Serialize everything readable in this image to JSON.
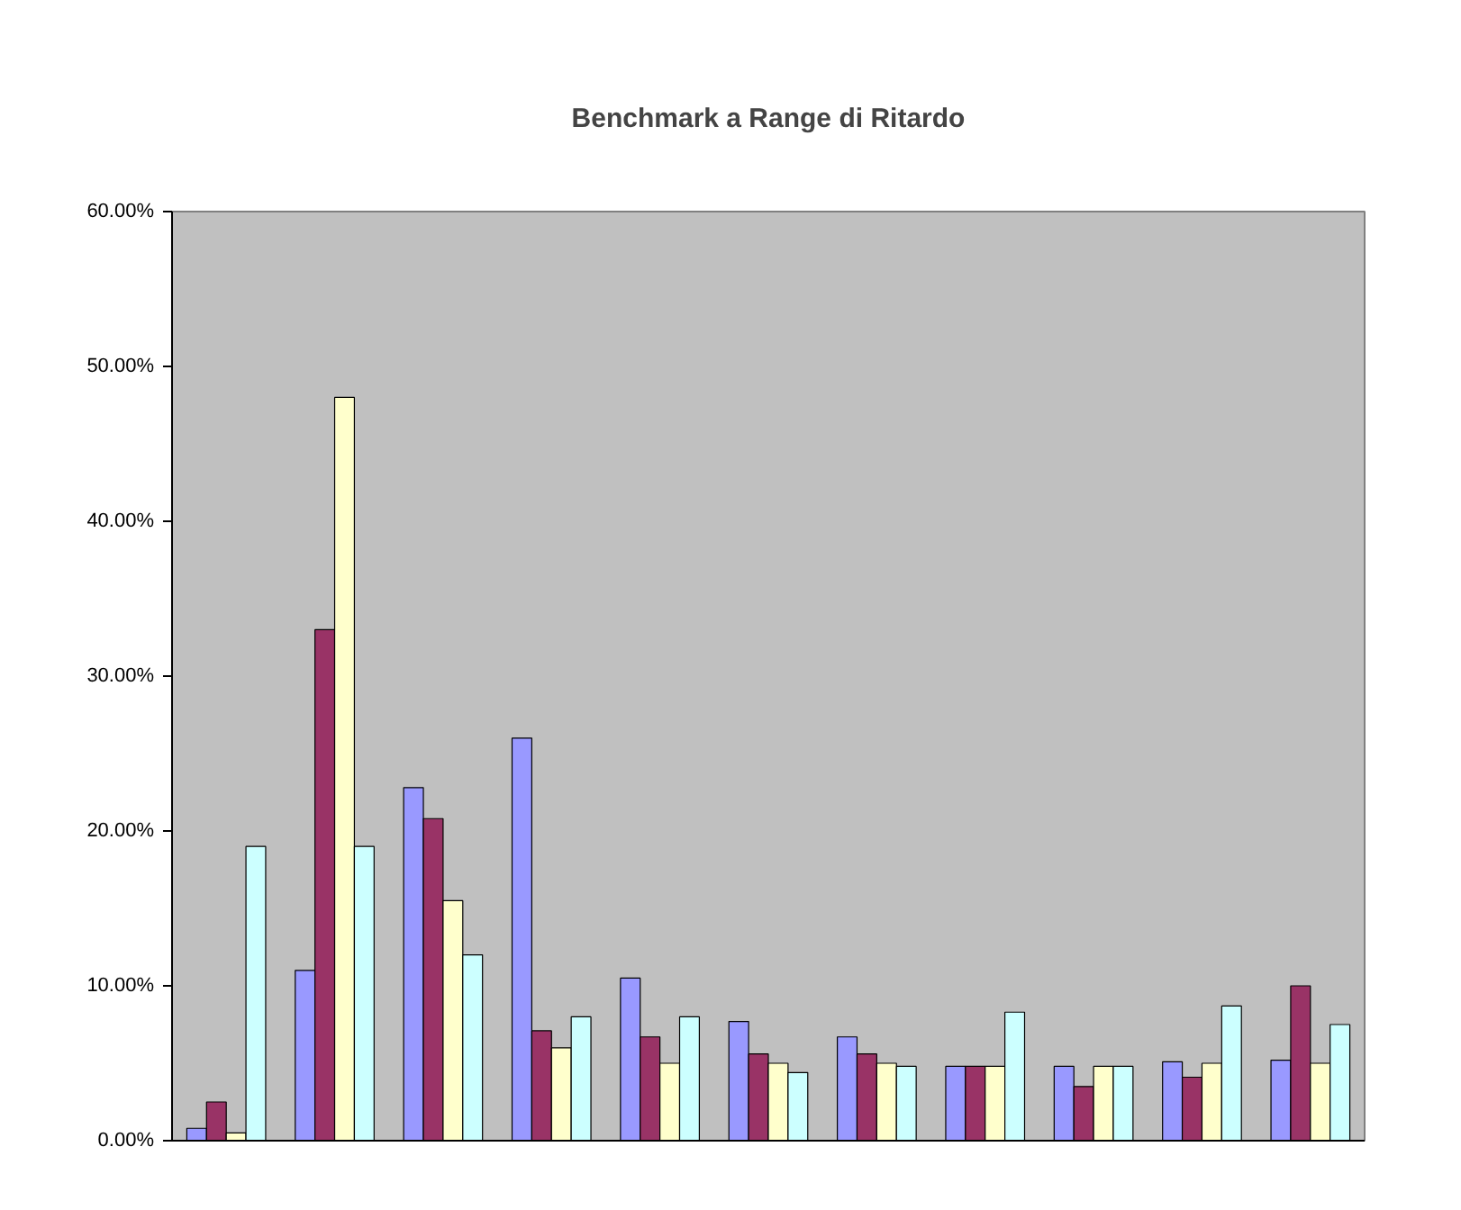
{
  "chart_data": {
    "type": "bar",
    "title": "Benchmark a Range di Ritardo",
    "categories": [
      null,
      null,
      null,
      null,
      null,
      null,
      null,
      null,
      null,
      null,
      null
    ],
    "series": [
      {
        "color": "#9999ff",
        "values": [
          0.8,
          11,
          22.8,
          26,
          10.5,
          7.7,
          6.7,
          4.8,
          4.8,
          5.1,
          5.2
        ]
      },
      {
        "color": "#993366",
        "values": [
          2.5,
          33,
          20.8,
          7.1,
          6.7,
          5.6,
          5.6,
          4.8,
          3.5,
          4.1,
          10
        ]
      },
      {
        "color": "#ffffcc",
        "values": [
          0.5,
          48,
          15.5,
          6,
          5,
          5,
          5,
          4.8,
          4.8,
          5,
          5
        ]
      },
      {
        "color": "#ccffff",
        "values": [
          19,
          19,
          12,
          8,
          8,
          4.4,
          4.8,
          8.3,
          4.8,
          8.7,
          7.5
        ]
      }
    ],
    "ylim": [
      0,
      60
    ],
    "yticks": [
      {
        "value": 0,
        "label": "0.00%"
      },
      {
        "value": 10,
        "label": "10.00%"
      },
      {
        "value": 20,
        "label": "20.00%"
      },
      {
        "value": 30,
        "label": "30.00%"
      },
      {
        "value": 40,
        "label": "40.00%"
      },
      {
        "value": 50,
        "label": "50.00%"
      },
      {
        "value": 60,
        "label": "60.00%"
      }
    ]
  }
}
